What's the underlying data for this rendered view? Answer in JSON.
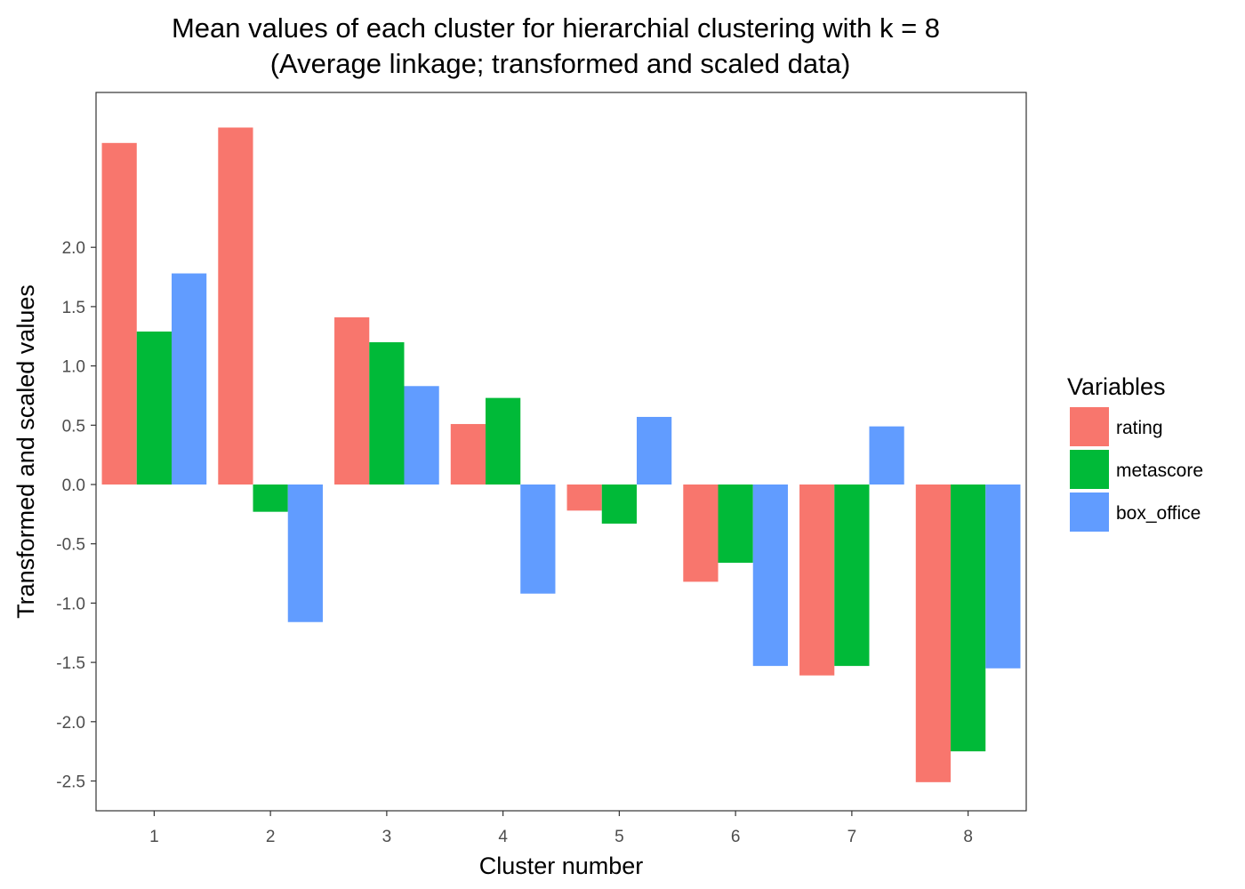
{
  "chart_data": {
    "type": "bar",
    "title": "Mean values of each cluster for hierarchial clustering with k = 8",
    "subtitle": "(Average linkage; transformed and scaled data)",
    "xlabel": "Cluster number",
    "ylabel": "Transformed and scaled values",
    "categories": [
      "1",
      "2",
      "3",
      "4",
      "5",
      "6",
      "7",
      "8"
    ],
    "ylim": [
      -2.75,
      3.3
    ],
    "yticks": [
      -2.5,
      -2.0,
      -1.5,
      -1.0,
      -0.5,
      0.0,
      0.5,
      1.0,
      1.5,
      2.0
    ],
    "ytick_labels": [
      "-2.5",
      "-2.0",
      "-1.5",
      "-1.0",
      "-0.5",
      "0.0",
      "0.5",
      "1.0",
      "1.5",
      "2.0"
    ],
    "grid": false,
    "legend": {
      "title": "Variables",
      "position": "right"
    },
    "series": [
      {
        "name": "rating",
        "color": "#F8766D",
        "values": [
          2.88,
          3.01,
          1.41,
          0.51,
          -0.22,
          -0.82,
          -1.61,
          -2.51
        ]
      },
      {
        "name": "metascore",
        "color": "#00BA38",
        "values": [
          1.29,
          -0.23,
          1.2,
          0.73,
          -0.33,
          -0.66,
          -1.53,
          -2.25
        ]
      },
      {
        "name": "box_office",
        "color": "#619CFF",
        "values": [
          1.78,
          -1.16,
          0.83,
          -0.92,
          0.57,
          -1.53,
          0.49,
          -1.55
        ]
      }
    ]
  }
}
